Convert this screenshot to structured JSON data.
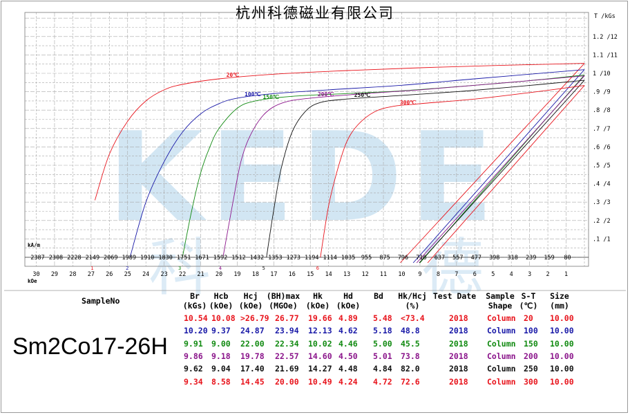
{
  "company": "杭州科德磁业有限公司",
  "watermark": {
    "big": "KEDE",
    "chars": [
      "科",
      "德"
    ],
    "color": "#9cc8e6"
  },
  "material": "Sm2Co17-26H",
  "table": {
    "sample_no_label": "SampleNo",
    "headers": [
      {
        "l1": "Br",
        "l2": "(kGs)"
      },
      {
        "l1": "Hcb",
        "l2": "(kOe)"
      },
      {
        "l1": "Hcj",
        "l2": "(kOe)"
      },
      {
        "l1": "(BH)max",
        "l2": "(MGOe)"
      },
      {
        "l1": "Hk",
        "l2": "(kOe)"
      },
      {
        "l1": "Hd",
        "l2": "(kOe)"
      },
      {
        "l1": "Bd",
        "l2": ""
      },
      {
        "l1": "Hk/Hcj",
        "l2": "(%)"
      },
      {
        "l1": "Test Date",
        "l2": ""
      },
      {
        "l1": "Sample",
        "l2": "Shape"
      },
      {
        "l1": "S-T",
        "l2": "(℃)"
      },
      {
        "l1": "Size",
        "l2": "(mm)"
      }
    ],
    "rows": [
      {
        "color": "#e8141c",
        "cells": [
          "10.54",
          "10.08",
          ">26.79",
          "26.77",
          "19.66",
          "4.89",
          "5.48",
          "<73.4",
          "2018",
          "Column",
          "20",
          "10.00"
        ]
      },
      {
        "color": "#1a1aa8",
        "cells": [
          "10.20",
          "9.37",
          "24.87",
          "23.94",
          "12.13",
          "4.62",
          "5.18",
          "48.8",
          "2018",
          "Column",
          "100",
          "10.00"
        ]
      },
      {
        "color": "#118a11",
        "cells": [
          "9.91",
          "9.00",
          "22.00",
          "22.34",
          "10.02",
          "4.46",
          "5.00",
          "45.5",
          "2018",
          "Column",
          "150",
          "10.00"
        ]
      },
      {
        "color": "#8b158b",
        "cells": [
          "9.86",
          "9.18",
          "19.78",
          "22.57",
          "14.60",
          "4.50",
          "5.01",
          "73.8",
          "2018",
          "Column",
          "200",
          "10.00"
        ]
      },
      {
        "color": "#111111",
        "cells": [
          "9.62",
          "9.04",
          "17.40",
          "21.69",
          "14.27",
          "4.48",
          "4.84",
          "82.0",
          "2018",
          "Column",
          "250",
          "10.00"
        ]
      },
      {
        "color": "#e8141c",
        "cells": [
          "9.34",
          "8.58",
          "14.45",
          "20.00",
          "10.49",
          "4.24",
          "4.72",
          "72.6",
          "2018",
          "Column",
          "300",
          "10.00"
        ]
      }
    ]
  },
  "chart_data": {
    "type": "line",
    "title": "",
    "x_axis": {
      "label_kam": "kA/m",
      "label_koe": "kOe",
      "koe_ticks": [
        "30",
        "29",
        "28",
        "27",
        "26",
        "25",
        "24",
        "23",
        "22",
        "21",
        "20",
        "19",
        "18",
        "17",
        "16",
        "15",
        "14",
        "13",
        "12",
        "11",
        "10",
        "9",
        "8",
        "7",
        "6",
        "5",
        "4",
        "3",
        "2",
        "1"
      ],
      "kam_ticks": [
        "2387",
        "2308",
        "2228",
        "2149",
        "2069",
        "1989",
        "1910",
        "1830",
        "1751",
        "1671",
        "1592",
        "1512",
        "1432",
        "1353",
        "1273",
        "1194",
        "1114",
        "1035",
        "955",
        "875",
        "796",
        "716",
        "637",
        "557",
        "477",
        "398",
        "318",
        "239",
        "159",
        "80"
      ],
      "xlim_koe": [
        30,
        0
      ],
      "reversed": true
    },
    "y_axis": {
      "label": "T /kGs",
      "ticks": [
        ".1 /1",
        ".2 /2",
        ".3 /3",
        ".4 /4",
        ".5 /5",
        ".6 /6",
        ".7 /7",
        ".8 /8",
        ".9 /9",
        "1 /10",
        "1.1 /11",
        "1.2 /12"
      ],
      "ylim_kgs": [
        0,
        13
      ]
    },
    "grid": true,
    "series": [
      {
        "name": "20℃",
        "marker": "1",
        "color": "#e8141c",
        "Br": 10.54,
        "Hcj": 26.79,
        "J_curve": [
          [
            26.79,
            3.1
          ],
          [
            26.0,
            5.6
          ],
          [
            25.0,
            7.4
          ],
          [
            24.0,
            8.5
          ],
          [
            23.0,
            9.1
          ],
          [
            22.0,
            9.4
          ],
          [
            20.0,
            9.7
          ],
          [
            17.0,
            9.95
          ],
          [
            13.0,
            10.15
          ],
          [
            9.0,
            10.3
          ],
          [
            5.0,
            10.42
          ],
          [
            0,
            10.54
          ]
        ],
        "B_curve": [
          [
            0,
            10.54
          ],
          [
            10.08,
            0
          ]
        ]
      },
      {
        "name": "100℃",
        "marker": "2",
        "color": "#1a1aa8",
        "Br": 10.2,
        "Hcj": 24.87,
        "J_curve": [
          [
            24.87,
            0
          ],
          [
            24.0,
            3.0
          ],
          [
            23.0,
            5.2
          ],
          [
            22.0,
            6.8
          ],
          [
            21.0,
            7.8
          ],
          [
            20.0,
            8.35
          ],
          [
            19.0,
            8.65
          ],
          [
            17.0,
            8.9
          ],
          [
            14.0,
            9.1
          ],
          [
            10.0,
            9.35
          ],
          [
            6.0,
            9.7
          ],
          [
            3.0,
            9.95
          ],
          [
            0,
            10.2
          ]
        ],
        "B_curve": [
          [
            0,
            10.2
          ],
          [
            9.37,
            0
          ]
        ]
      },
      {
        "name": "150℃",
        "marker": "3",
        "color": "#118a11",
        "Br": 9.91,
        "Hcj": 22.0,
        "J_curve": [
          [
            22.0,
            0
          ],
          [
            21.5,
            2.5
          ],
          [
            21.0,
            4.6
          ],
          [
            20.5,
            6.0
          ],
          [
            20.0,
            7.0
          ],
          [
            19.0,
            8.1
          ],
          [
            18.0,
            8.5
          ],
          [
            16.0,
            8.75
          ],
          [
            13.0,
            8.9
          ],
          [
            10.0,
            9.05
          ],
          [
            6.0,
            9.35
          ],
          [
            3.0,
            9.6
          ],
          [
            0,
            9.91
          ]
        ],
        "B_curve": [
          [
            0,
            9.91
          ],
          [
            9.0,
            0
          ]
        ]
      },
      {
        "name": "200℃",
        "marker": "4",
        "color": "#8b158b",
        "Br": 9.86,
        "Hcj": 19.78,
        "J_curve": [
          [
            19.78,
            0
          ],
          [
            19.2,
            3.2
          ],
          [
            18.8,
            5.2
          ],
          [
            18.3,
            6.6
          ],
          [
            17.5,
            7.8
          ],
          [
            16.5,
            8.4
          ],
          [
            15.0,
            8.65
          ],
          [
            12.0,
            8.9
          ],
          [
            9.0,
            9.1
          ],
          [
            6.0,
            9.35
          ],
          [
            3.0,
            9.6
          ],
          [
            0,
            9.86
          ]
        ],
        "B_curve": [
          [
            0,
            9.86
          ],
          [
            9.18,
            0
          ]
        ]
      },
      {
        "name": "250℃",
        "marker": "5",
        "color": "#111111",
        "Br": 9.62,
        "Hcj": 17.4,
        "J_curve": [
          [
            17.4,
            0
          ],
          [
            17.0,
            2.6
          ],
          [
            16.6,
            4.8
          ],
          [
            16.0,
            6.8
          ],
          [
            15.3,
            7.9
          ],
          [
            14.5,
            8.4
          ],
          [
            13.0,
            8.6
          ],
          [
            10.0,
            8.8
          ],
          [
            7.0,
            9.0
          ],
          [
            4.0,
            9.25
          ],
          [
            0,
            9.62
          ]
        ],
        "B_curve": [
          [
            0,
            9.62
          ],
          [
            9.04,
            0
          ]
        ]
      },
      {
        "name": "300℃",
        "marker": "6",
        "color": "#e8141c",
        "Br": 9.34,
        "Hcj": 14.45,
        "J_curve": [
          [
            14.45,
            0
          ],
          [
            14.0,
            2.8
          ],
          [
            13.5,
            4.8
          ],
          [
            13.0,
            6.3
          ],
          [
            12.4,
            7.2
          ],
          [
            11.5,
            7.9
          ],
          [
            10.5,
            8.2
          ],
          [
            9.0,
            8.35
          ],
          [
            6.0,
            8.6
          ],
          [
            3.0,
            8.95
          ],
          [
            0,
            9.34
          ]
        ],
        "B_curve": [
          [
            0,
            9.34
          ],
          [
            8.58,
            0
          ]
        ]
      }
    ]
  }
}
